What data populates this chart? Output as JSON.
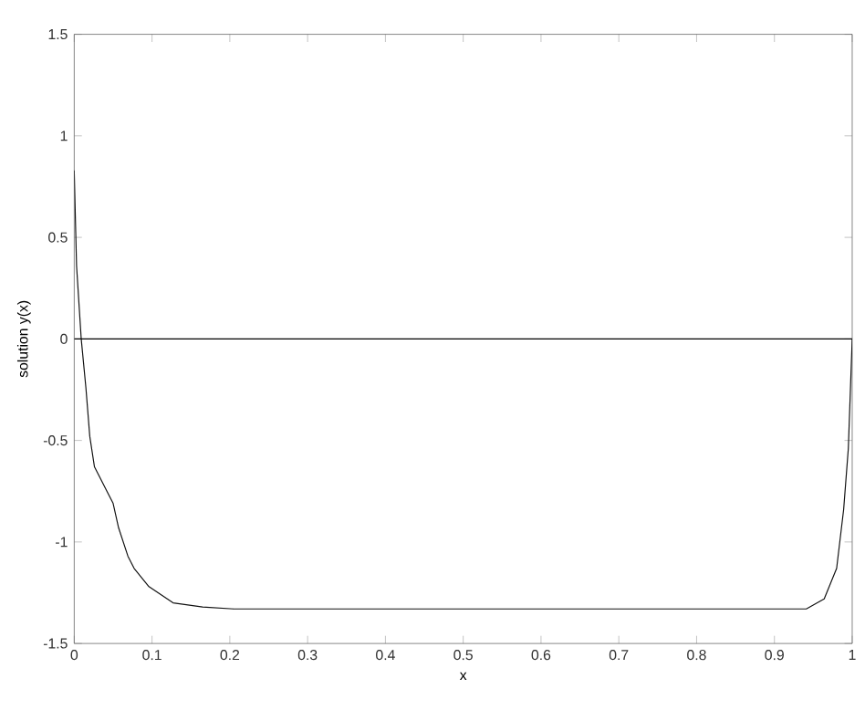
{
  "chart_data": {
    "type": "line",
    "xlabel": "x",
    "ylabel": "solution y(x)",
    "xlim": [
      0,
      1
    ],
    "ylim": [
      -1.5,
      1.5
    ],
    "xticks": [
      0,
      0.1,
      0.2,
      0.3,
      0.4,
      0.5,
      0.6,
      0.7,
      0.8,
      0.9,
      1
    ],
    "yticks": [
      -1.5,
      -1,
      -0.5,
      0,
      0.5,
      1,
      1.5
    ],
    "grid": false,
    "line_style": "solid",
    "ref_lines": [
      {
        "axis": "y",
        "value": 0,
        "color": "#000000"
      }
    ],
    "series": [
      {
        "color": "#111111",
        "x": [
          0,
          0.003,
          0.009,
          0.015,
          0.02,
          0.026,
          0.042,
          0.05,
          0.057,
          0.069,
          0.077,
          0.096,
          0.127,
          0.165,
          0.205,
          0.3,
          0.5,
          0.7,
          0.9,
          0.941,
          0.964,
          0.98,
          0.989,
          0.995,
          1
        ],
        "values": [
          0.83,
          0.36,
          0,
          -0.24,
          -0.48,
          -0.63,
          -0.75,
          -0.81,
          -0.93,
          -1.07,
          -1.13,
          -1.22,
          -1.3,
          -1.32,
          -1.33,
          -1.33,
          -1.33,
          -1.33,
          -1.33,
          -1.33,
          -1.28,
          -1.13,
          -0.84,
          -0.54,
          0
        ]
      }
    ]
  }
}
